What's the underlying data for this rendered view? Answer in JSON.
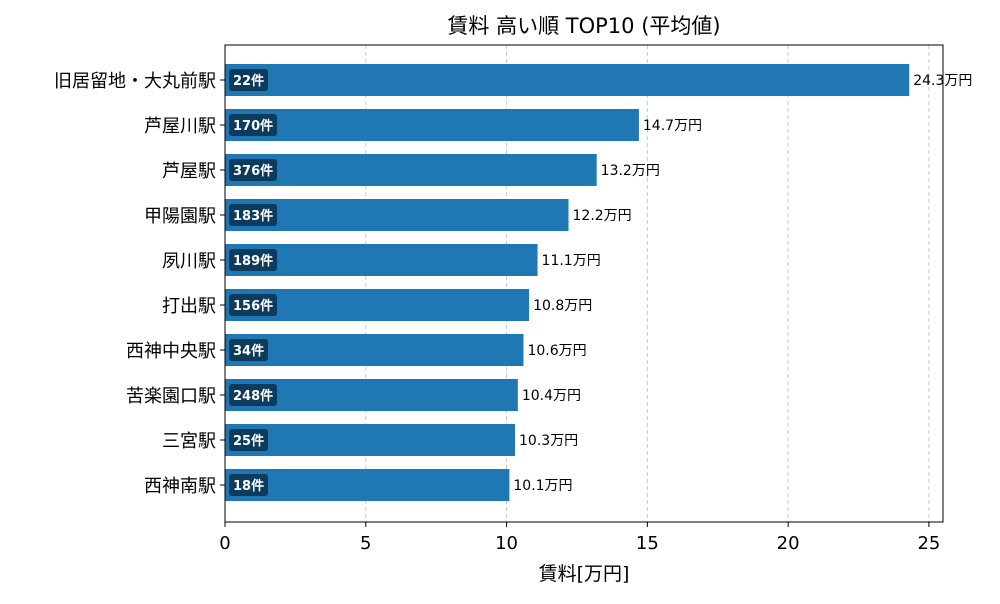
{
  "chart_data": {
    "type": "bar",
    "orientation": "horizontal",
    "title": "賃料 高い順 TOP10 (平均値)",
    "xlabel": "賃料[万円]",
    "ylabel": "",
    "xlim": [
      0,
      25.5
    ],
    "xticks": [
      0,
      5,
      10,
      15,
      20,
      25
    ],
    "grid": "x-dashed",
    "categories": [
      "旧居留地・大丸前駅",
      "芦屋川駅",
      "芦屋駅",
      "甲陽園駅",
      "夙川駅",
      "打出駅",
      "西神中央駅",
      "苦楽園口駅",
      "三宮駅",
      "西神南駅"
    ],
    "values": [
      24.3,
      14.7,
      13.2,
      12.2,
      11.1,
      10.8,
      10.6,
      10.4,
      10.3,
      10.1
    ],
    "value_labels": [
      "24.3万円",
      "14.7万円",
      "13.2万円",
      "12.2万円",
      "11.1万円",
      "10.8万円",
      "10.6万円",
      "10.4万円",
      "10.3万円",
      "10.1万円"
    ],
    "counts": [
      "22件",
      "170件",
      "376件",
      "183件",
      "189件",
      "156件",
      "34件",
      "248件",
      "25件",
      "18件"
    ],
    "colors": {
      "bar": "#1f77b4",
      "count_badge": "#0d3b5e",
      "grid": "#c8c8c8"
    }
  }
}
